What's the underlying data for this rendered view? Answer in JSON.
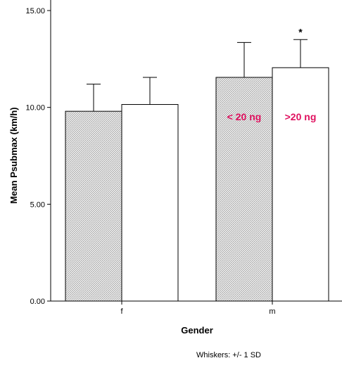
{
  "chart_data": {
    "type": "bar",
    "xlabel": "Gender",
    "ylabel": "Mean Psubmax  (km/h)",
    "ylim": [
      0,
      15
    ],
    "yticks": [
      "0.00",
      "5.00",
      "10.00",
      "15.00"
    ],
    "categories": [
      "f",
      "m"
    ],
    "series": [
      {
        "name": "< 20 ng",
        "values": [
          9.8,
          11.55
        ],
        "errors": [
          1.4,
          1.8
        ],
        "pattern": "hatched"
      },
      {
        "name": ">20 ng",
        "values": [
          10.15,
          12.05
        ],
        "errors": [
          1.4,
          1.45
        ],
        "pattern": "white"
      }
    ],
    "annotations": [
      {
        "text": "< 20 ng",
        "color": "#e0115f"
      },
      {
        "text": ">20 ng",
        "color": "#e0115f"
      },
      {
        "text": "*",
        "color": "#000000"
      }
    ],
    "footnote": "Whiskers: +/- 1 SD",
    "grid": false,
    "legend": "none"
  }
}
